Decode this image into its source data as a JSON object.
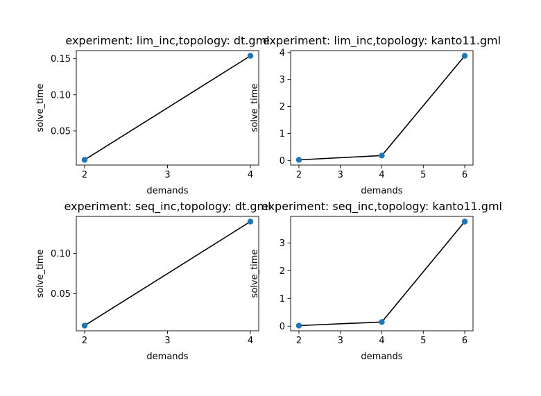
{
  "colors": {
    "marker": "#1f77b4",
    "line": "#000000",
    "axes": "#000000",
    "background": "#ffffff"
  },
  "chart_data": [
    {
      "type": "scatter",
      "title": "experiment: lim_inc,topology: dt.gml",
      "xlabel": "demands",
      "ylabel": "solve_time",
      "x": [
        2,
        4
      ],
      "y": [
        0.01,
        0.154
      ],
      "xlim": [
        1.9,
        4.1
      ],
      "ylim": [
        0.0028,
        0.1612
      ],
      "xticks": [
        2,
        3,
        4
      ],
      "xtick_labels": [
        "2",
        "3",
        "4"
      ],
      "yticks": [
        0.05,
        0.1,
        0.15
      ],
      "ytick_labels": [
        "0.05",
        "0.10",
        "0.15"
      ],
      "line": true,
      "grid": false
    },
    {
      "type": "scatter",
      "title": "experiment: lim_inc,topology: kanto11.gml",
      "xlabel": "demands",
      "ylabel": "solve_time",
      "x": [
        2,
        4,
        6
      ],
      "y": [
        0.02,
        0.18,
        3.88
      ],
      "xlim": [
        1.8,
        6.2
      ],
      "ylim": [
        -0.173,
        4.073
      ],
      "xticks": [
        2,
        3,
        4,
        5,
        6
      ],
      "xtick_labels": [
        "2",
        "3",
        "4",
        "5",
        "6"
      ],
      "yticks": [
        0,
        1,
        2,
        3,
        4
      ],
      "ytick_labels": [
        "0",
        "1",
        "2",
        "3",
        "4"
      ],
      "line": true,
      "grid": false
    },
    {
      "type": "scatter",
      "title": "experiment: seq_inc,topology: dt.gml",
      "xlabel": "demands",
      "ylabel": "solve_time",
      "x": [
        2,
        4
      ],
      "y": [
        0.01,
        0.14
      ],
      "xlim": [
        1.9,
        4.1
      ],
      "ylim": [
        0.0035,
        0.1465
      ],
      "xticks": [
        2,
        3,
        4
      ],
      "xtick_labels": [
        "2",
        "3",
        "4"
      ],
      "yticks": [
        0.05,
        0.1
      ],
      "ytick_labels": [
        "0.05",
        "0.10"
      ],
      "line": true,
      "grid": false
    },
    {
      "type": "scatter",
      "title": "experiment: seq_inc,topology: kanto11.gml",
      "xlabel": "demands",
      "ylabel": "solve_time",
      "x": [
        2,
        4,
        6
      ],
      "y": [
        0.02,
        0.15,
        3.77
      ],
      "xlim": [
        1.8,
        6.2
      ],
      "ylim": [
        -0.1675,
        3.9575
      ],
      "xticks": [
        2,
        3,
        4,
        5,
        6
      ],
      "xtick_labels": [
        "2",
        "3",
        "4",
        "5",
        "6"
      ],
      "yticks": [
        0,
        1,
        2,
        3
      ],
      "ytick_labels": [
        "0",
        "1",
        "2",
        "3"
      ],
      "line": true,
      "grid": false
    }
  ]
}
